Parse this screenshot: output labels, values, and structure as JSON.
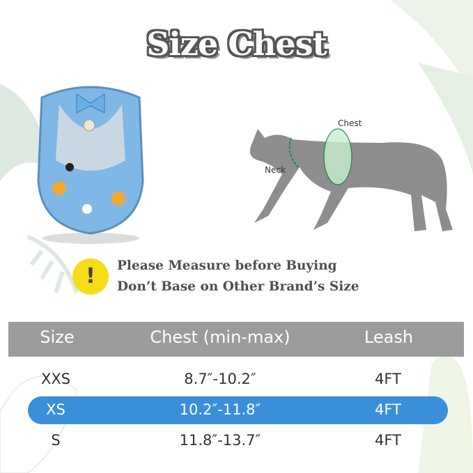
{
  "title": "Size Chest",
  "diagram": {
    "chest_label": "Chest",
    "neck_label": "Neck"
  },
  "warning": {
    "icon": "exclamation-icon",
    "line1": "Please Measure before Buying",
    "line2": "Don’t Base on Other Brand’s Size"
  },
  "table": {
    "headers": [
      "Size",
      "Chest (min-max)",
      "Leash"
    ],
    "rows": [
      {
        "size": "XXS",
        "chest": "8.7″-10.2″",
        "leash": "4FT"
      },
      {
        "size": "XS",
        "chest": "10.2″-11.8″",
        "leash": "4FT",
        "highlighted": true
      },
      {
        "size": "S",
        "chest": "11.8″-13.7″",
        "leash": "4FT"
      }
    ]
  },
  "colors": {
    "header": "#9c9c9c",
    "highlight": "#3a8fdb",
    "warning": "#f5dc18",
    "harness": "#7fb8e6"
  }
}
